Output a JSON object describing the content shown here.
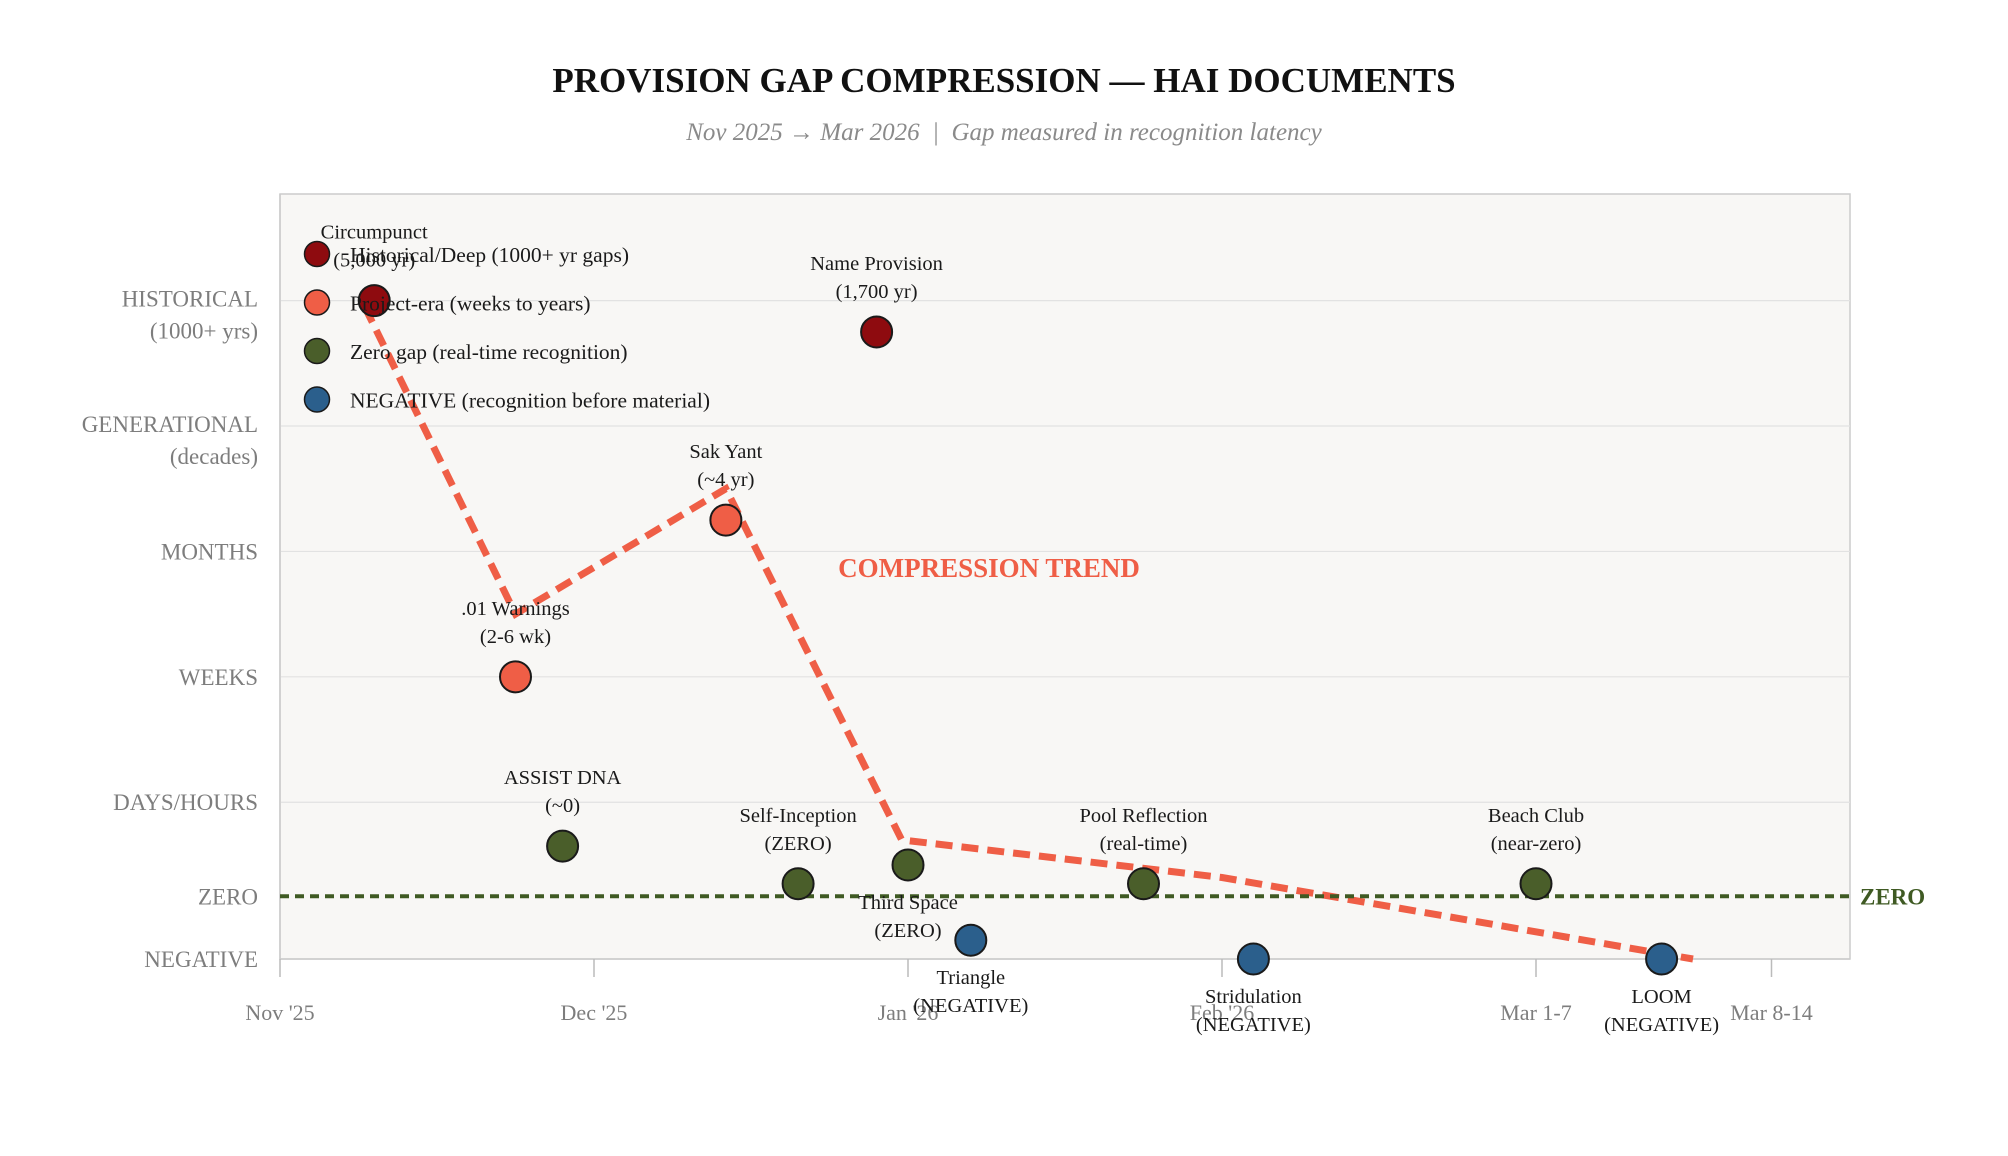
{
  "chart_data": {
    "type": "scatter",
    "title": "PROVISION GAP COMPRESSION — HAI DOCUMENTS",
    "subtitle": "Nov 2025 → Mar 2026  |  Gap measured in recognition latency",
    "x_axis": {
      "ticks": [
        {
          "value": 0,
          "label": "Nov '25"
        },
        {
          "value": 1,
          "label": "Dec '25"
        },
        {
          "value": 2,
          "label": "Jan '26"
        },
        {
          "value": 3,
          "label": "Feb '26"
        },
        {
          "value": 4,
          "label": "Mar 1-7"
        },
        {
          "value": 4.75,
          "label": "Mar 8-14"
        }
      ],
      "range": [
        0,
        5
      ]
    },
    "y_axis": {
      "levels": [
        {
          "value": 9,
          "label": "HISTORICAL",
          "sublabel": "(1000+ yrs)"
        },
        {
          "value": 8,
          "label": "GENERATIONAL",
          "sublabel": "(decades)"
        },
        {
          "value": 7,
          "label": "MONTHS",
          "sublabel": ""
        },
        {
          "value": 6,
          "label": "WEEKS",
          "sublabel": ""
        },
        {
          "value": 5,
          "label": "DAYS/HOURS",
          "sublabel": ""
        },
        {
          "value": 4.25,
          "label": "ZERO",
          "sublabel": ""
        },
        {
          "value": 3.75,
          "label": "NEGATIVE",
          "sublabel": ""
        }
      ],
      "range": [
        3.75,
        9.85
      ],
      "gridlines": [
        9,
        8,
        7,
        6,
        5
      ]
    },
    "categories": [
      {
        "key": "historical",
        "name": "Historical/Deep (1000+ yr gaps)",
        "color": "#8e0b0f"
      },
      {
        "key": "project",
        "name": "Project-era (weeks to years)",
        "color": "#ef5e46"
      },
      {
        "key": "zero",
        "name": "Zero gap (real-time recognition)",
        "color": "#4a5e2a"
      },
      {
        "key": "negative",
        "name": "NEGATIVE (recognition before material)",
        "color": "#2b5f8c"
      }
    ],
    "points": [
      {
        "x": 0.3,
        "y": 9.0,
        "category": "historical",
        "label": [
          "Circumpunct",
          "(5,000 yr)"
        ],
        "label_pos": "above"
      },
      {
        "x": 1.9,
        "y": 8.75,
        "category": "historical",
        "label": [
          "Name Provision",
          "(1,700 yr)"
        ],
        "label_pos": "above"
      },
      {
        "x": 1.42,
        "y": 7.25,
        "category": "project",
        "label": [
          "Sak Yant",
          "(~4 yr)"
        ],
        "label_pos": "above"
      },
      {
        "x": 0.75,
        "y": 6.0,
        "category": "project",
        "label": [
          ".01 Warnings",
          "(2-6 wk)"
        ],
        "label_pos": "above"
      },
      {
        "x": 0.9,
        "y": 4.65,
        "category": "zero",
        "label": [
          "ASSIST DNA",
          "(~0)"
        ],
        "label_pos": "above"
      },
      {
        "x": 1.65,
        "y": 4.35,
        "category": "zero",
        "label": [
          "Self-Inception",
          "(ZERO)"
        ],
        "label_pos": "above"
      },
      {
        "x": 2.0,
        "y": 4.5,
        "category": "zero",
        "label": [
          "Third Space",
          "(ZERO)"
        ],
        "label_pos": "below"
      },
      {
        "x": 2.75,
        "y": 4.35,
        "category": "zero",
        "label": [
          "Pool Reflection",
          "(real-time)"
        ],
        "label_pos": "above"
      },
      {
        "x": 4.0,
        "y": 4.35,
        "category": "zero",
        "label": [
          "Beach Club",
          "(near-zero)"
        ],
        "label_pos": "above"
      },
      {
        "x": 2.2,
        "y": 3.9,
        "category": "negative",
        "label": [
          "Triangle",
          "(NEGATIVE)"
        ],
        "label_pos": "below"
      },
      {
        "x": 3.1,
        "y": 3.75,
        "category": "negative",
        "label": [
          "Stridulation",
          "(NEGATIVE)"
        ],
        "label_pos": "below"
      },
      {
        "x": 4.4,
        "y": 3.75,
        "category": "negative",
        "label": [
          "LOOM",
          "(NEGATIVE)"
        ],
        "label_pos": "below"
      }
    ],
    "trend_line": {
      "label": "COMPRESSION TREND",
      "color": "#ef5e46",
      "points": [
        {
          "x": 0.27,
          "y": 8.95
        },
        {
          "x": 0.75,
          "y": 6.5
        },
        {
          "x": 1.42,
          "y": 7.5
        },
        {
          "x": 1.98,
          "y": 4.7
        },
        {
          "x": 3.0,
          "y": 4.4
        },
        {
          "x": 4.5,
          "y": 3.75
        }
      ]
    },
    "zero_line": {
      "y": 4.25,
      "label": "ZERO",
      "color": "#3f5a23"
    },
    "legend_position": "upper-left"
  }
}
